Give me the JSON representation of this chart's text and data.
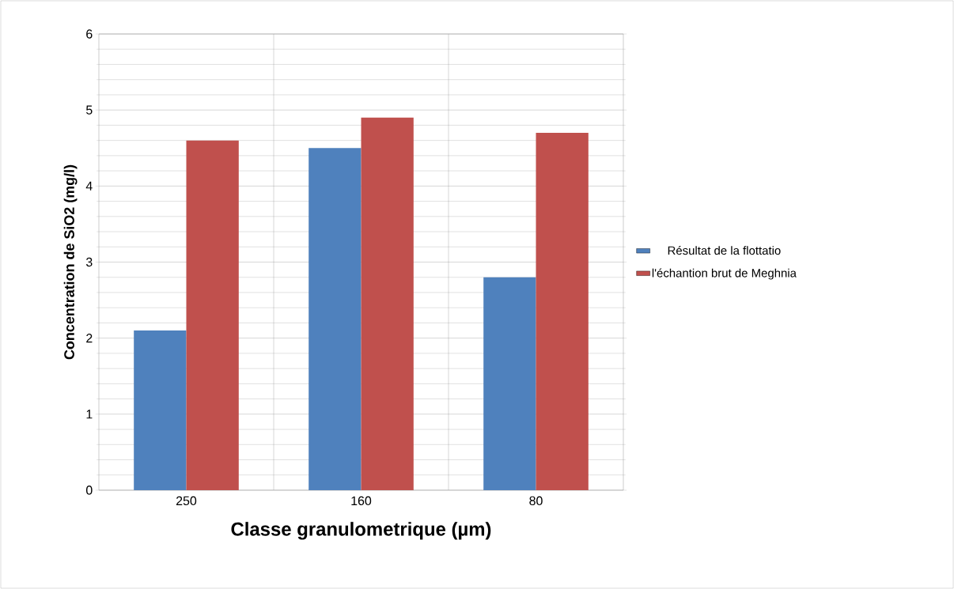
{
  "chart_data": {
    "type": "bar",
    "xlabel": "Classe granulometrique (µm)",
    "ylabel": "Concentration de SiO2 (mg/l)",
    "categories": [
      "250",
      "160",
      "80"
    ],
    "series": [
      {
        "name": "Résultat de la flottatio",
        "color": "#4f81bd",
        "values": [
          2.1,
          4.5,
          2.8
        ]
      },
      {
        "name": "l'échantion brut de Meghnia",
        "color": "#c0504d",
        "values": [
          4.6,
          4.9,
          4.7
        ]
      }
    ],
    "ylim": [
      0,
      6
    ],
    "yticks": [
      0,
      1,
      2,
      3,
      4,
      5,
      6
    ],
    "grid": true,
    "legend": "right"
  }
}
